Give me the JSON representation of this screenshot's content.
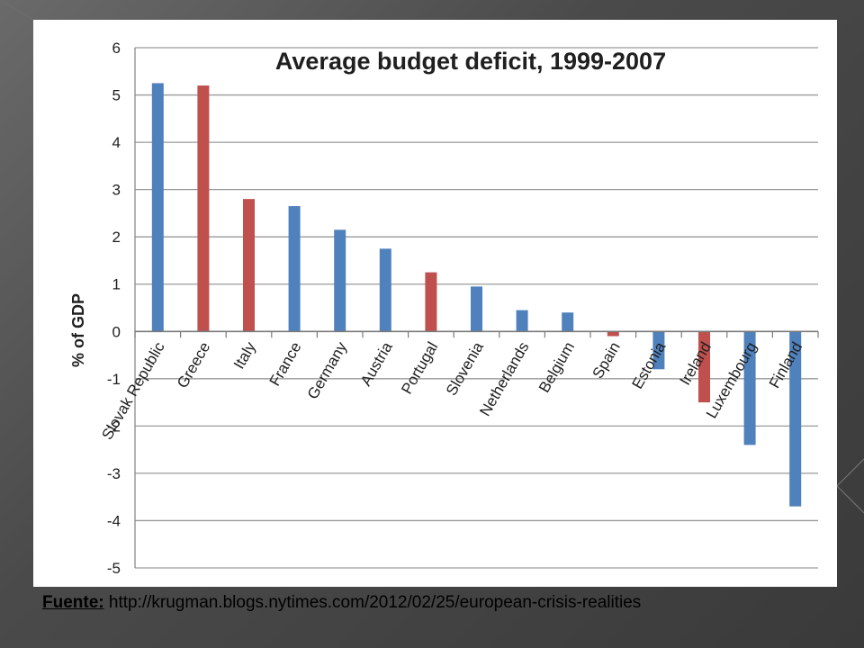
{
  "caption": {
    "label": "Fuente:",
    "url": " http://krugman.blogs.nytimes.com/2012/02/25/european-crisis-realities"
  },
  "colors": {
    "blue": "#4f81bd",
    "red": "#c0504d",
    "grid": "#9a9a9a",
    "slide_bg": "#555555"
  },
  "chart_data": {
    "type": "bar",
    "title": "Average budget deficit, 1999-2007",
    "xlabel": "",
    "ylabel": "% of GDP",
    "ylim": [
      -5,
      6
    ],
    "yticks": [
      "-5",
      "-4",
      "-3",
      "-2",
      "-1",
      "0",
      "1",
      "2",
      "3",
      "4",
      "5",
      "6"
    ],
    "grid": true,
    "categories": [
      "Slovak Republic",
      "Greece",
      "Italy",
      "France",
      "Germany",
      "Austria",
      "Portugal",
      "Slovenia",
      "Netherlands",
      "Belgium",
      "Spain",
      "Estonia",
      "Ireland",
      "Luxembourg",
      "Finland"
    ],
    "values": [
      5.25,
      5.2,
      2.8,
      2.65,
      2.15,
      1.75,
      1.25,
      0.95,
      0.45,
      0.4,
      -0.1,
      -0.8,
      -1.5,
      -2.4,
      -3.7
    ],
    "bar_colors": [
      "blue",
      "red",
      "red",
      "blue",
      "blue",
      "blue",
      "red",
      "blue",
      "blue",
      "blue",
      "red",
      "blue",
      "red",
      "blue",
      "blue"
    ]
  }
}
